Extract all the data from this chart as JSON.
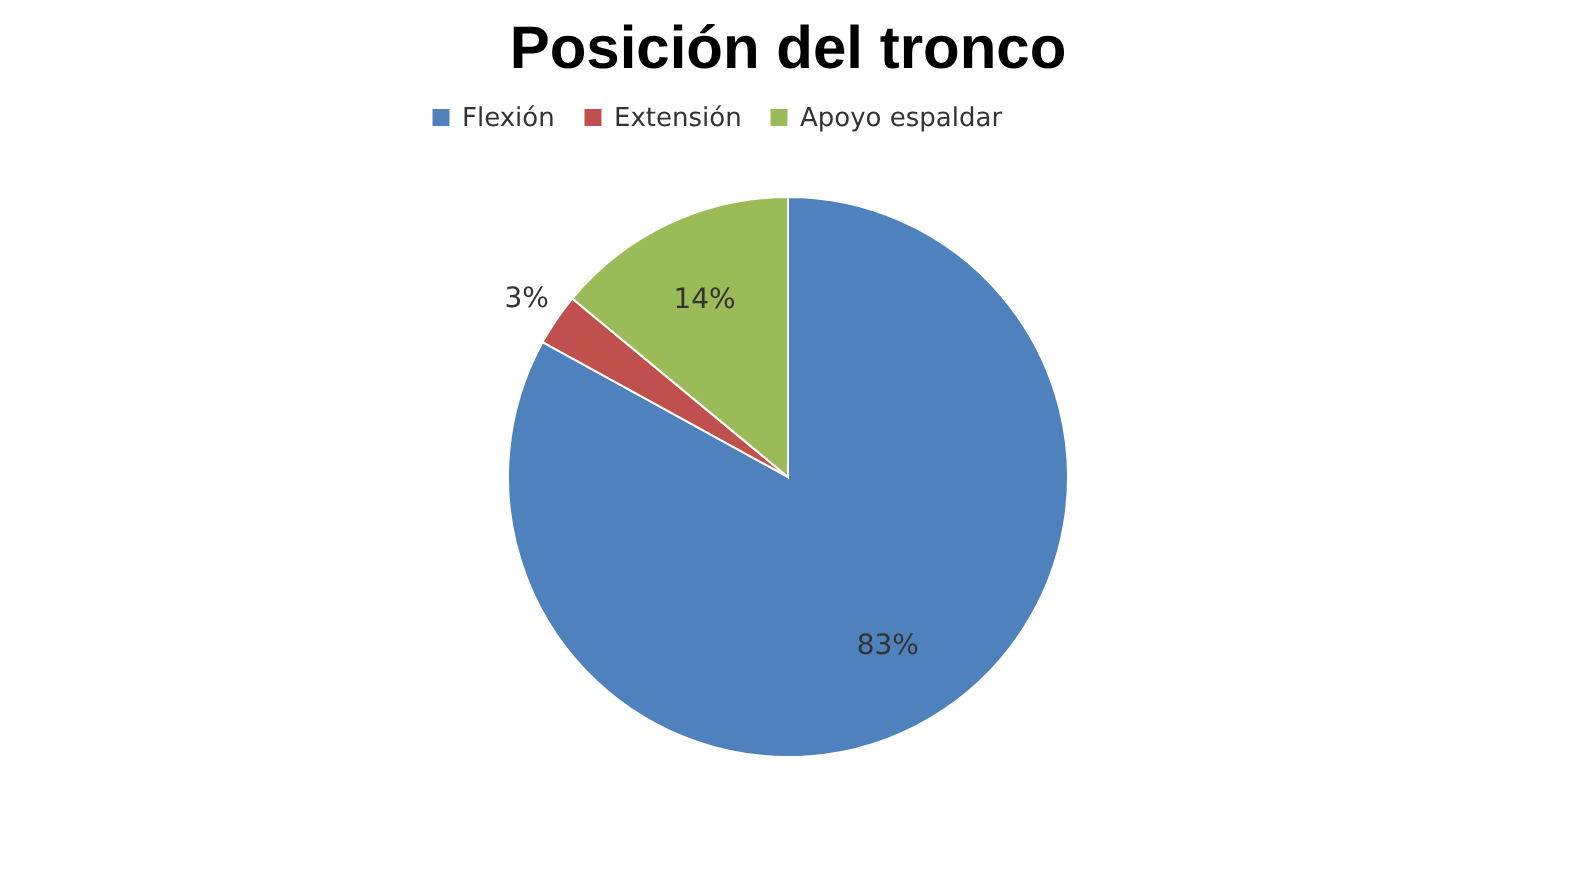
{
  "chart_data": {
    "type": "pie",
    "title": "Posición del tronco",
    "categories": [
      "Flexión",
      "Extensión",
      "Apoyo espaldar"
    ],
    "values": [
      83,
      3,
      14
    ],
    "colors": [
      "#4f81bd",
      "#c0504d",
      "#9bbb59"
    ],
    "value_labels": [
      "83%",
      "3%",
      "14%"
    ],
    "legend": "top"
  }
}
